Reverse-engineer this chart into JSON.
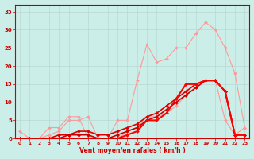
{
  "xlabel": "Vent moyen/en rafales ( km/h )",
  "xlim": [
    -0.5,
    23.5
  ],
  "ylim": [
    0,
    37
  ],
  "xticks": [
    0,
    1,
    2,
    3,
    4,
    5,
    6,
    7,
    8,
    9,
    10,
    11,
    12,
    13,
    14,
    15,
    16,
    17,
    18,
    19,
    20,
    21,
    22,
    23
  ],
  "yticks": [
    0,
    5,
    10,
    15,
    20,
    25,
    30,
    35
  ],
  "bg_color": "#cceee8",
  "grid_color": "#b0d0cc",
  "series": [
    {
      "x": [
        0,
        1,
        2,
        3,
        4,
        5,
        6,
        7,
        8,
        9,
        10,
        11,
        12,
        13,
        14,
        15,
        16,
        17,
        18,
        19,
        20,
        21,
        22,
        23
      ],
      "y": [
        0,
        0,
        0,
        3,
        3,
        6,
        6,
        0,
        0,
        0,
        5,
        5,
        16,
        26,
        21,
        22,
        25,
        25,
        29,
        32,
        30,
        25,
        18,
        3
      ],
      "color": "#ff9999",
      "linewidth": 0.8,
      "marker": "D",
      "markersize": 2.0,
      "zorder": 2
    },
    {
      "x": [
        0,
        1,
        2,
        3,
        4,
        5,
        6,
        7,
        8,
        9,
        10,
        11,
        12,
        13,
        14,
        15,
        16,
        17,
        18,
        19,
        20,
        21,
        22,
        23
      ],
      "y": [
        2,
        0,
        0,
        1,
        2,
        5,
        5,
        6,
        0,
        0,
        0,
        2,
        3,
        6,
        6,
        7,
        9,
        12,
        14,
        16,
        16,
        5,
        1,
        3
      ],
      "color": "#ff9999",
      "linewidth": 0.8,
      "marker": "D",
      "markersize": 2.0,
      "zorder": 2
    },
    {
      "x": [
        0,
        1,
        2,
        3,
        4,
        5,
        6,
        7,
        8,
        9,
        10,
        11,
        12,
        13,
        14,
        15,
        16,
        17,
        18,
        19,
        20,
        21,
        22,
        23
      ],
      "y": [
        0,
        0,
        0,
        0,
        1,
        1,
        2,
        2,
        1,
        1,
        2,
        3,
        4,
        6,
        7,
        9,
        11,
        13,
        15,
        16,
        16,
        13,
        1,
        1
      ],
      "color": "#dd0000",
      "linewidth": 1.2,
      "marker": "D",
      "markersize": 2.0,
      "zorder": 4
    },
    {
      "x": [
        0,
        1,
        2,
        3,
        4,
        5,
        6,
        7,
        8,
        9,
        10,
        11,
        12,
        13,
        14,
        15,
        16,
        17,
        18,
        19,
        20,
        21,
        22,
        23
      ],
      "y": [
        0,
        0,
        0,
        0,
        0,
        1,
        1,
        1,
        0,
        0,
        1,
        2,
        3,
        5,
        6,
        8,
        10,
        12,
        14,
        16,
        16,
        13,
        1,
        1
      ],
      "color": "#cc0000",
      "linewidth": 1.2,
      "marker": "D",
      "markersize": 2.0,
      "zorder": 4
    },
    {
      "x": [
        0,
        1,
        2,
        3,
        4,
        5,
        6,
        7,
        8,
        9,
        10,
        11,
        12,
        13,
        14,
        15,
        16,
        17,
        18,
        19,
        20,
        21,
        22,
        23
      ],
      "y": [
        0,
        0,
        0,
        0,
        0,
        0,
        0,
        0,
        0,
        0,
        0,
        1,
        2,
        5,
        5,
        7,
        11,
        15,
        15,
        16,
        16,
        13,
        1,
        1
      ],
      "color": "#ff0000",
      "linewidth": 1.5,
      "marker": "D",
      "markersize": 2.0,
      "zorder": 5
    }
  ]
}
